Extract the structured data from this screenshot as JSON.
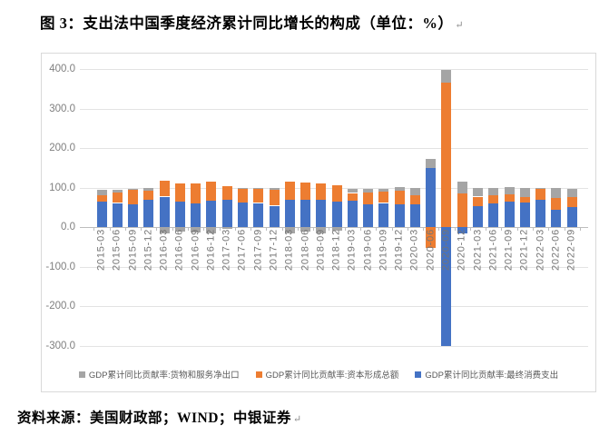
{
  "title": {
    "text": "图 3：支出法中国季度经济累计同比增长的构成（单位：%）",
    "paragraph_mark": "↵"
  },
  "source": {
    "text": "资料来源：美国财政部；WIND；中银证券",
    "paragraph_mark": "↵"
  },
  "chart_data": {
    "type": "bar",
    "stacked": true,
    "unit": "%",
    "title": "支出法中国季度经济累计同比增长的构成",
    "categories": [
      "2015-03",
      "2015-06",
      "2015-09",
      "2015-12",
      "2016-03",
      "2016-06",
      "2016-09",
      "2016-12",
      "2017-03",
      "2017-06",
      "2017-09",
      "2017-12",
      "2018-03",
      "2018-06",
      "2018-09",
      "2018-12",
      "2019-03",
      "2019-06",
      "2019-09",
      "2019-12",
      "2020-03",
      "2020-06",
      "2020-09",
      "2020-12",
      "2021-03",
      "2021-06",
      "2021-09",
      "2021-12",
      "2022-03",
      "2022-06",
      "2022-09"
    ],
    "series": [
      {
        "name": "GDP累计同比贡献率:货物和服务净出口",
        "color": "#A5A5A5",
        "values": [
          15,
          6,
          3,
          7,
          -17,
          -12,
          -13,
          -15,
          -4,
          2,
          1,
          6,
          -16,
          -12,
          -15,
          -8,
          10,
          9,
          6,
          10,
          19,
          22,
          33,
          30,
          21,
          19,
          20,
          22,
          2,
          25,
          22
        ]
      },
      {
        "name": "GDP累计同比贡献率:资本形成总额",
        "color": "#ED7D31",
        "values": [
          16,
          27,
          36,
          24,
          40,
          46,
          51,
          48,
          33,
          36,
          38,
          40,
          46,
          43,
          43,
          41,
          20,
          30,
          29,
          34,
          24,
          -52,
          365,
          86,
          23,
          22,
          18,
          14,
          28,
          29,
          25
        ]
      },
      {
        "name": "GDP累计同比贡献率:最终消费支出",
        "color": "#4472C4",
        "values": [
          64,
          61,
          58,
          68,
          77,
          64,
          60,
          66,
          70,
          62,
          61,
          54,
          70,
          69,
          68,
          65,
          66,
          58,
          61,
          57,
          57,
          150,
          -300,
          -16,
          54,
          59,
          64,
          62,
          69,
          44,
          50
        ]
      }
    ],
    "stack_bottom_to_top": [
      "GDP累计同比贡献率:最终消费支出",
      "GDP累计同比贡献率:资本形成总额",
      "GDP累计同比贡献率:货物和服务净出口"
    ],
    "ylim": [
      -300,
      400
    ],
    "yticks": [
      400,
      300,
      200,
      100,
      0,
      -100,
      -200,
      -300
    ],
    "ytick_decimals": 1,
    "grid": true,
    "legend_position": "bottom"
  }
}
